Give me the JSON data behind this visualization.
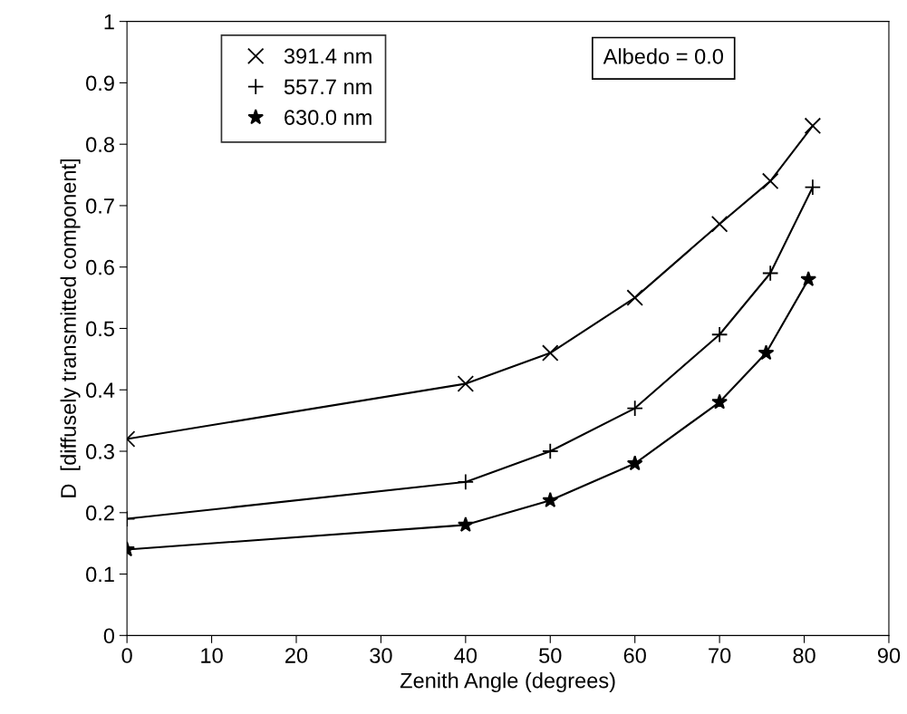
{
  "chart_data": {
    "type": "line",
    "xlabel": "Zenith Angle (degrees)",
    "ylabel": "D  [diffusely transmitted component]",
    "x": [
      0,
      40,
      50,
      60,
      70,
      76,
      81
    ],
    "series": [
      {
        "name": "391.4 nm",
        "color": "#000000",
        "marker": "cross",
        "values": [
          0.32,
          0.41,
          0.46,
          0.55,
          0.67,
          0.74,
          0.83
        ]
      },
      {
        "name": "557.7 nm",
        "color": "#000000",
        "marker": "plus",
        "values": [
          0.19,
          0.25,
          0.3,
          0.37,
          0.49,
          0.59,
          0.73
        ]
      },
      {
        "name": "630.0 nm",
        "color": "#000000",
        "marker": "star",
        "x": [
          0,
          40,
          50,
          60,
          70,
          75.5,
          80.5
        ],
        "values": [
          0.14,
          0.18,
          0.22,
          0.28,
          0.38,
          0.46,
          0.58
        ]
      }
    ],
    "annotations": [
      "Albedo = 0.0"
    ],
    "xlim": [
      0,
      90
    ],
    "xticks": [
      0,
      10,
      20,
      30,
      40,
      50,
      60,
      70,
      80,
      90
    ],
    "ylim": [
      0,
      1
    ],
    "yticks": [
      0,
      0.1,
      0.2,
      0.3,
      0.4,
      0.5,
      0.6,
      0.7,
      0.8,
      0.9,
      1
    ],
    "grid": false,
    "legend": "top left",
    "line_style": "solid"
  }
}
